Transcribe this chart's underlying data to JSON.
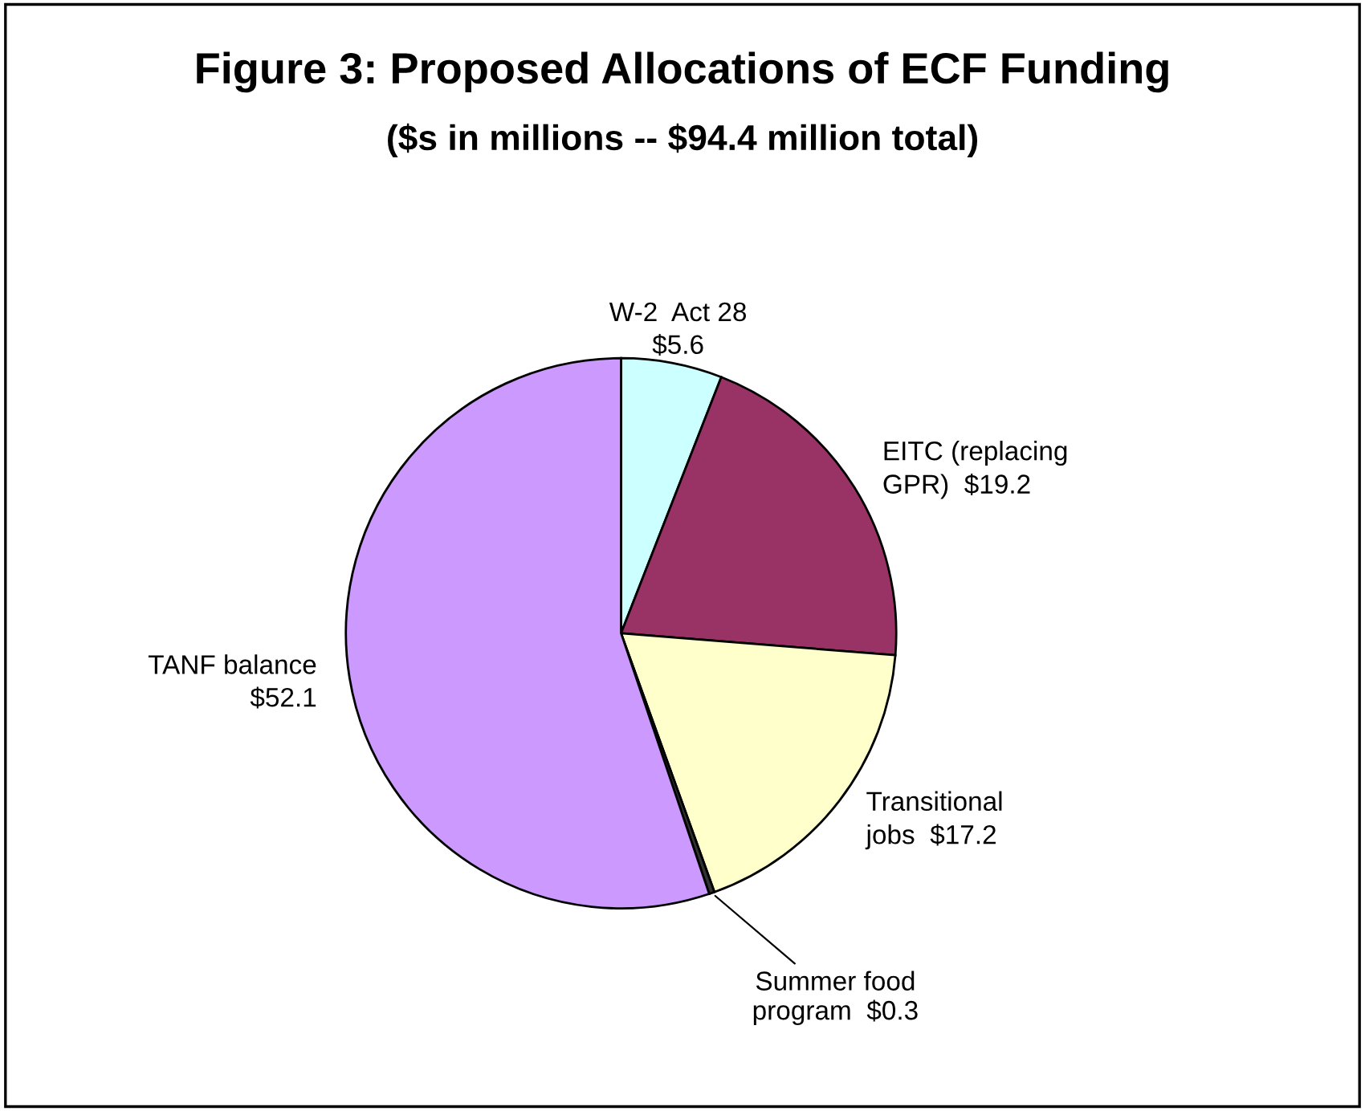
{
  "chart_data": {
    "type": "pie",
    "title": "Figure 3: Proposed Allocations of ECF Funding",
    "subtitle": "($s in millions -- $94.4 million total)",
    "categories": [
      "W-2  Act 28",
      "EITC (replacing\nGPR)",
      "Transitional\njobs",
      "Summer food\nprogram",
      "TANF balance"
    ],
    "values": [
      5.6,
      19.2,
      17.2,
      0.3,
      52.1
    ],
    "value_labels": [
      "$5.6",
      "$19.2",
      "$17.2",
      "$0.3",
      "$52.1"
    ],
    "colors": [
      "#ccffff",
      "#993366",
      "#ffffcc",
      "#333333",
      "#cc99ff"
    ],
    "legend": false
  }
}
